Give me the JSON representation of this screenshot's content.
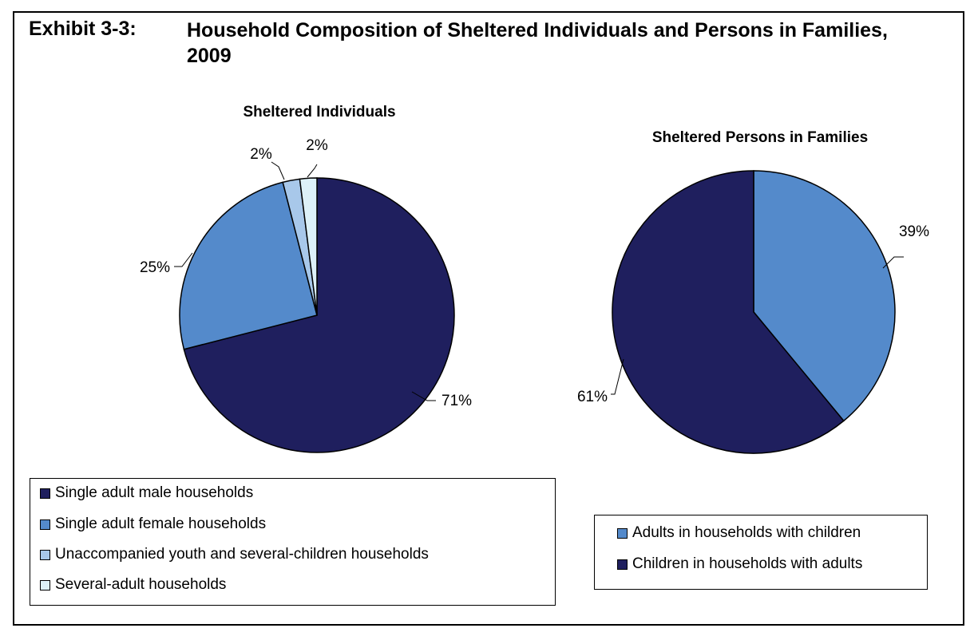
{
  "exhibit": {
    "label": "Exhibit 3-3:",
    "title": "Household Composition of Sheltered Individuals and Persons in Families, 2009"
  },
  "colors": {
    "navy": "#1f1f5e",
    "mid_blue": "#548acb",
    "light_blue": "#a8c8ea",
    "pale_blue": "#ddf1f8",
    "outline": "#000000"
  },
  "chart_data": [
    {
      "type": "pie",
      "title": "Sheltered Individuals",
      "slices": [
        {
          "name": "Single adult male households",
          "value": 71,
          "label": "71%",
          "color": "#1f1f5e"
        },
        {
          "name": "Single adult female households",
          "value": 25,
          "label": "25%",
          "color": "#548acb"
        },
        {
          "name": "Unaccompanied youth and several-children households",
          "value": 2,
          "label": "2%",
          "color": "#a8c8ea"
        },
        {
          "name": "Several-adult households",
          "value": 2,
          "label": "2%",
          "color": "#ddf1f8"
        }
      ],
      "legend": [
        "Single adult male households",
        "Single adult female households",
        "Unaccompanied youth and several-children households",
        "Several-adult households"
      ]
    },
    {
      "type": "pie",
      "title": "Sheltered Persons in Families",
      "slices": [
        {
          "name": "Adults in households with children",
          "value": 39,
          "label": "39%",
          "color": "#548acb"
        },
        {
          "name": "Children in households with adults",
          "value": 61,
          "label": "61%",
          "color": "#1f1f5e"
        }
      ],
      "legend": [
        "Adults in households with children",
        "Children in households with adults"
      ]
    }
  ]
}
